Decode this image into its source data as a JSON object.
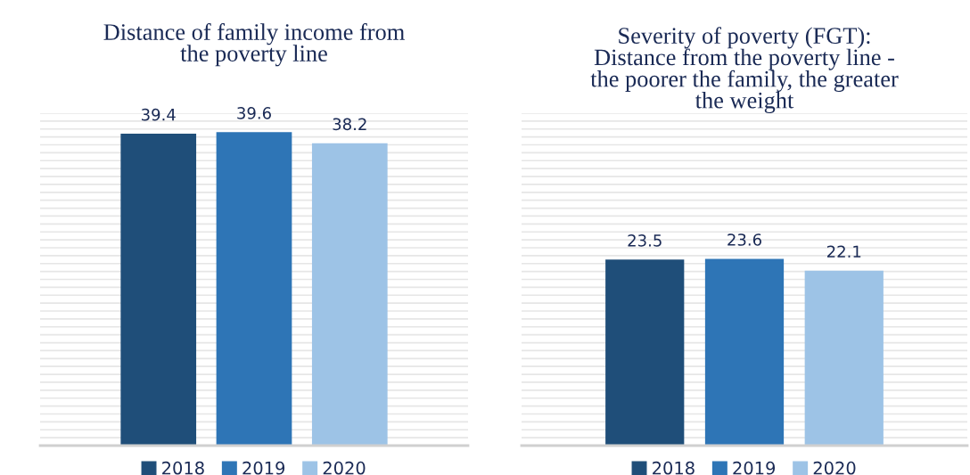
{
  "chart_data": [
    {
      "type": "bar",
      "title": "Distance of family income from\nthe poverty line",
      "categories": [
        null
      ],
      "series": [
        {
          "name": "2018",
          "color": "#1f4e79",
          "values": [
            39.4
          ]
        },
        {
          "name": "2019",
          "color": "#2e75b6",
          "values": [
            39.6
          ]
        },
        {
          "name": "2020",
          "color": "#9dc3e6",
          "values": [
            38.2
          ]
        }
      ],
      "ylim": [
        0,
        42
      ],
      "yticks": [
        {
          "value": 0,
          "label": null
        },
        {
          "value": 1,
          "label": null
        },
        {
          "value": 2,
          "label": null
        },
        {
          "value": 3,
          "label": null
        },
        {
          "value": 4,
          "label": null
        },
        {
          "value": 5,
          "label": null
        },
        {
          "value": 6,
          "label": null
        },
        {
          "value": 7,
          "label": null
        },
        {
          "value": 8,
          "label": null
        },
        {
          "value": 9,
          "label": null
        },
        {
          "value": 10,
          "label": null
        },
        {
          "value": 11,
          "label": null
        },
        {
          "value": 12,
          "label": null
        },
        {
          "value": 13,
          "label": null
        },
        {
          "value": 14,
          "label": null
        },
        {
          "value": 15,
          "label": null
        },
        {
          "value": 16,
          "label": null
        },
        {
          "value": 17,
          "label": null
        },
        {
          "value": 18,
          "label": null
        },
        {
          "value": 19,
          "label": null
        },
        {
          "value": 20,
          "label": null
        },
        {
          "value": 21,
          "label": null
        },
        {
          "value": 22,
          "label": null
        },
        {
          "value": 23,
          "label": null
        },
        {
          "value": 24,
          "label": null
        },
        {
          "value": 25,
          "label": null
        },
        {
          "value": 26,
          "label": null
        },
        {
          "value": 27,
          "label": null
        },
        {
          "value": 28,
          "label": null
        },
        {
          "value": 29,
          "label": null
        },
        {
          "value": 30,
          "label": null
        },
        {
          "value": 31,
          "label": null
        },
        {
          "value": 32,
          "label": null
        },
        {
          "value": 33,
          "label": null
        },
        {
          "value": 34,
          "label": null
        },
        {
          "value": 35,
          "label": null
        },
        {
          "value": 36,
          "label": null
        },
        {
          "value": 37,
          "label": null
        },
        {
          "value": 38,
          "label": null
        },
        {
          "value": 39,
          "label": null
        },
        {
          "value": 40,
          "label": null
        },
        {
          "value": 41,
          "label": null
        },
        {
          "value": 42,
          "label": null
        }
      ],
      "grid": "y",
      "data_labels": true,
      "legend": "bottom"
    },
    {
      "type": "bar",
      "title": "Severity of poverty (FGT):\nDistance from the poverty line -\nthe poorer the family, the greater\nthe weight",
      "categories": [
        null
      ],
      "series": [
        {
          "name": "2018",
          "color": "#1f4e79",
          "values": [
            23.5
          ]
        },
        {
          "name": "2019",
          "color": "#2e75b6",
          "values": [
            23.6
          ]
        },
        {
          "name": "2020",
          "color": "#9dc3e6",
          "values": [
            22.1
          ]
        }
      ],
      "ylim": [
        0,
        42
      ],
      "yticks": [
        {
          "value": 0,
          "label": null
        },
        {
          "value": 1,
          "label": null
        },
        {
          "value": 2,
          "label": null
        },
        {
          "value": 3,
          "label": null
        },
        {
          "value": 4,
          "label": null
        },
        {
          "value": 5,
          "label": null
        },
        {
          "value": 6,
          "label": null
        },
        {
          "value": 7,
          "label": null
        },
        {
          "value": 8,
          "label": null
        },
        {
          "value": 9,
          "label": null
        },
        {
          "value": 10,
          "label": null
        },
        {
          "value": 11,
          "label": null
        },
        {
          "value": 12,
          "label": null
        },
        {
          "value": 13,
          "label": null
        },
        {
          "value": 14,
          "label": null
        },
        {
          "value": 15,
          "label": null
        },
        {
          "value": 16,
          "label": null
        },
        {
          "value": 17,
          "label": null
        },
        {
          "value": 18,
          "label": null
        },
        {
          "value": 19,
          "label": null
        },
        {
          "value": 20,
          "label": null
        },
        {
          "value": 21,
          "label": null
        },
        {
          "value": 22,
          "label": null
        },
        {
          "value": 23,
          "label": null
        },
        {
          "value": 24,
          "label": null
        },
        {
          "value": 25,
          "label": null
        },
        {
          "value": 26,
          "label": null
        },
        {
          "value": 27,
          "label": null
        },
        {
          "value": 28,
          "label": null
        },
        {
          "value": 29,
          "label": null
        },
        {
          "value": 30,
          "label": null
        },
        {
          "value": 31,
          "label": null
        },
        {
          "value": 32,
          "label": null
        },
        {
          "value": 33,
          "label": null
        },
        {
          "value": 34,
          "label": null
        },
        {
          "value": 35,
          "label": null
        },
        {
          "value": 36,
          "label": null
        },
        {
          "value": 37,
          "label": null
        },
        {
          "value": 38,
          "label": null
        },
        {
          "value": 39,
          "label": null
        },
        {
          "value": 40,
          "label": null
        },
        {
          "value": 41,
          "label": null
        },
        {
          "value": 42,
          "label": null
        }
      ],
      "grid": "y",
      "data_labels": true,
      "legend": "bottom"
    }
  ]
}
